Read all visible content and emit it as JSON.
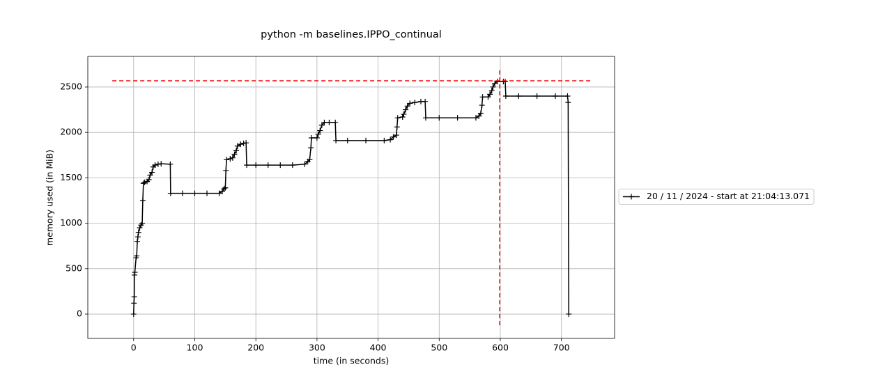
{
  "chart_data": {
    "type": "line",
    "title": "python -m baselines.IPPO_continual",
    "x_label": "time (in seconds)",
    "y_label": "memory used (in MiB)",
    "xlim": [
      -75,
      787
    ],
    "ylim": [
      -268,
      2837
    ],
    "xticks": [
      0,
      100,
      200,
      300,
      400,
      500,
      600,
      700
    ],
    "yticks": [
      0,
      500,
      1000,
      1500,
      2000,
      2500
    ],
    "grid": true,
    "legend_loc": "right",
    "series": [
      {
        "name": "20 / 11 / 2024 - start at 21:04:13.071",
        "color": "#000000",
        "x": [
          0,
          0.5,
          1,
          1.5,
          2,
          4,
          5,
          6,
          7,
          8,
          10,
          12,
          14,
          15,
          16,
          18,
          22,
          25,
          27,
          30,
          32,
          35,
          40,
          45,
          60,
          60.5,
          80,
          100,
          120,
          140,
          145,
          148,
          150,
          151,
          152,
          158,
          162,
          165,
          168,
          170,
          175,
          180,
          184,
          185,
          200,
          220,
          240,
          260,
          280,
          285,
          288,
          290,
          291,
          300,
          302,
          305,
          308,
          312,
          320,
          330,
          331,
          350,
          380,
          410,
          420,
          425,
          430,
          431,
          432,
          440,
          442,
          445,
          448,
          452,
          460,
          470,
          477,
          478,
          500,
          530,
          560,
          565,
          568,
          570,
          571,
          580,
          583,
          586,
          588,
          591,
          595,
          605,
          608,
          609,
          630,
          660,
          690,
          710,
          711,
          712
        ],
        "values": [
          0,
          120,
          190,
          430,
          460,
          620,
          640,
          800,
          850,
          900,
          950,
          980,
          1000,
          1250,
          1440,
          1450,
          1460,
          1480,
          1530,
          1560,
          1620,
          1640,
          1650,
          1655,
          1650,
          1330,
          1330,
          1330,
          1330,
          1330,
          1350,
          1380,
          1390,
          1580,
          1700,
          1710,
          1720,
          1760,
          1800,
          1850,
          1870,
          1880,
          1885,
          1640,
          1640,
          1640,
          1640,
          1640,
          1650,
          1680,
          1700,
          1830,
          1940,
          1940,
          1980,
          2020,
          2080,
          2110,
          2110,
          2110,
          1910,
          1910,
          1910,
          1910,
          1920,
          1950,
          1970,
          2060,
          2160,
          2170,
          2200,
          2250,
          2290,
          2320,
          2330,
          2340,
          2340,
          2160,
          2160,
          2160,
          2160,
          2180,
          2210,
          2300,
          2390,
          2390,
          2420,
          2460,
          2500,
          2540,
          2560,
          2560,
          2560,
          2400,
          2400,
          2400,
          2400,
          2400,
          2330,
          0
        ]
      }
    ],
    "max_hline": {
      "y": 2569,
      "x": [
        -35,
        750
      ],
      "color": "#ff0000"
    },
    "max_vline": {
      "x": 599,
      "y": [
        -123,
        2700
      ],
      "color": "#ff0000"
    }
  }
}
